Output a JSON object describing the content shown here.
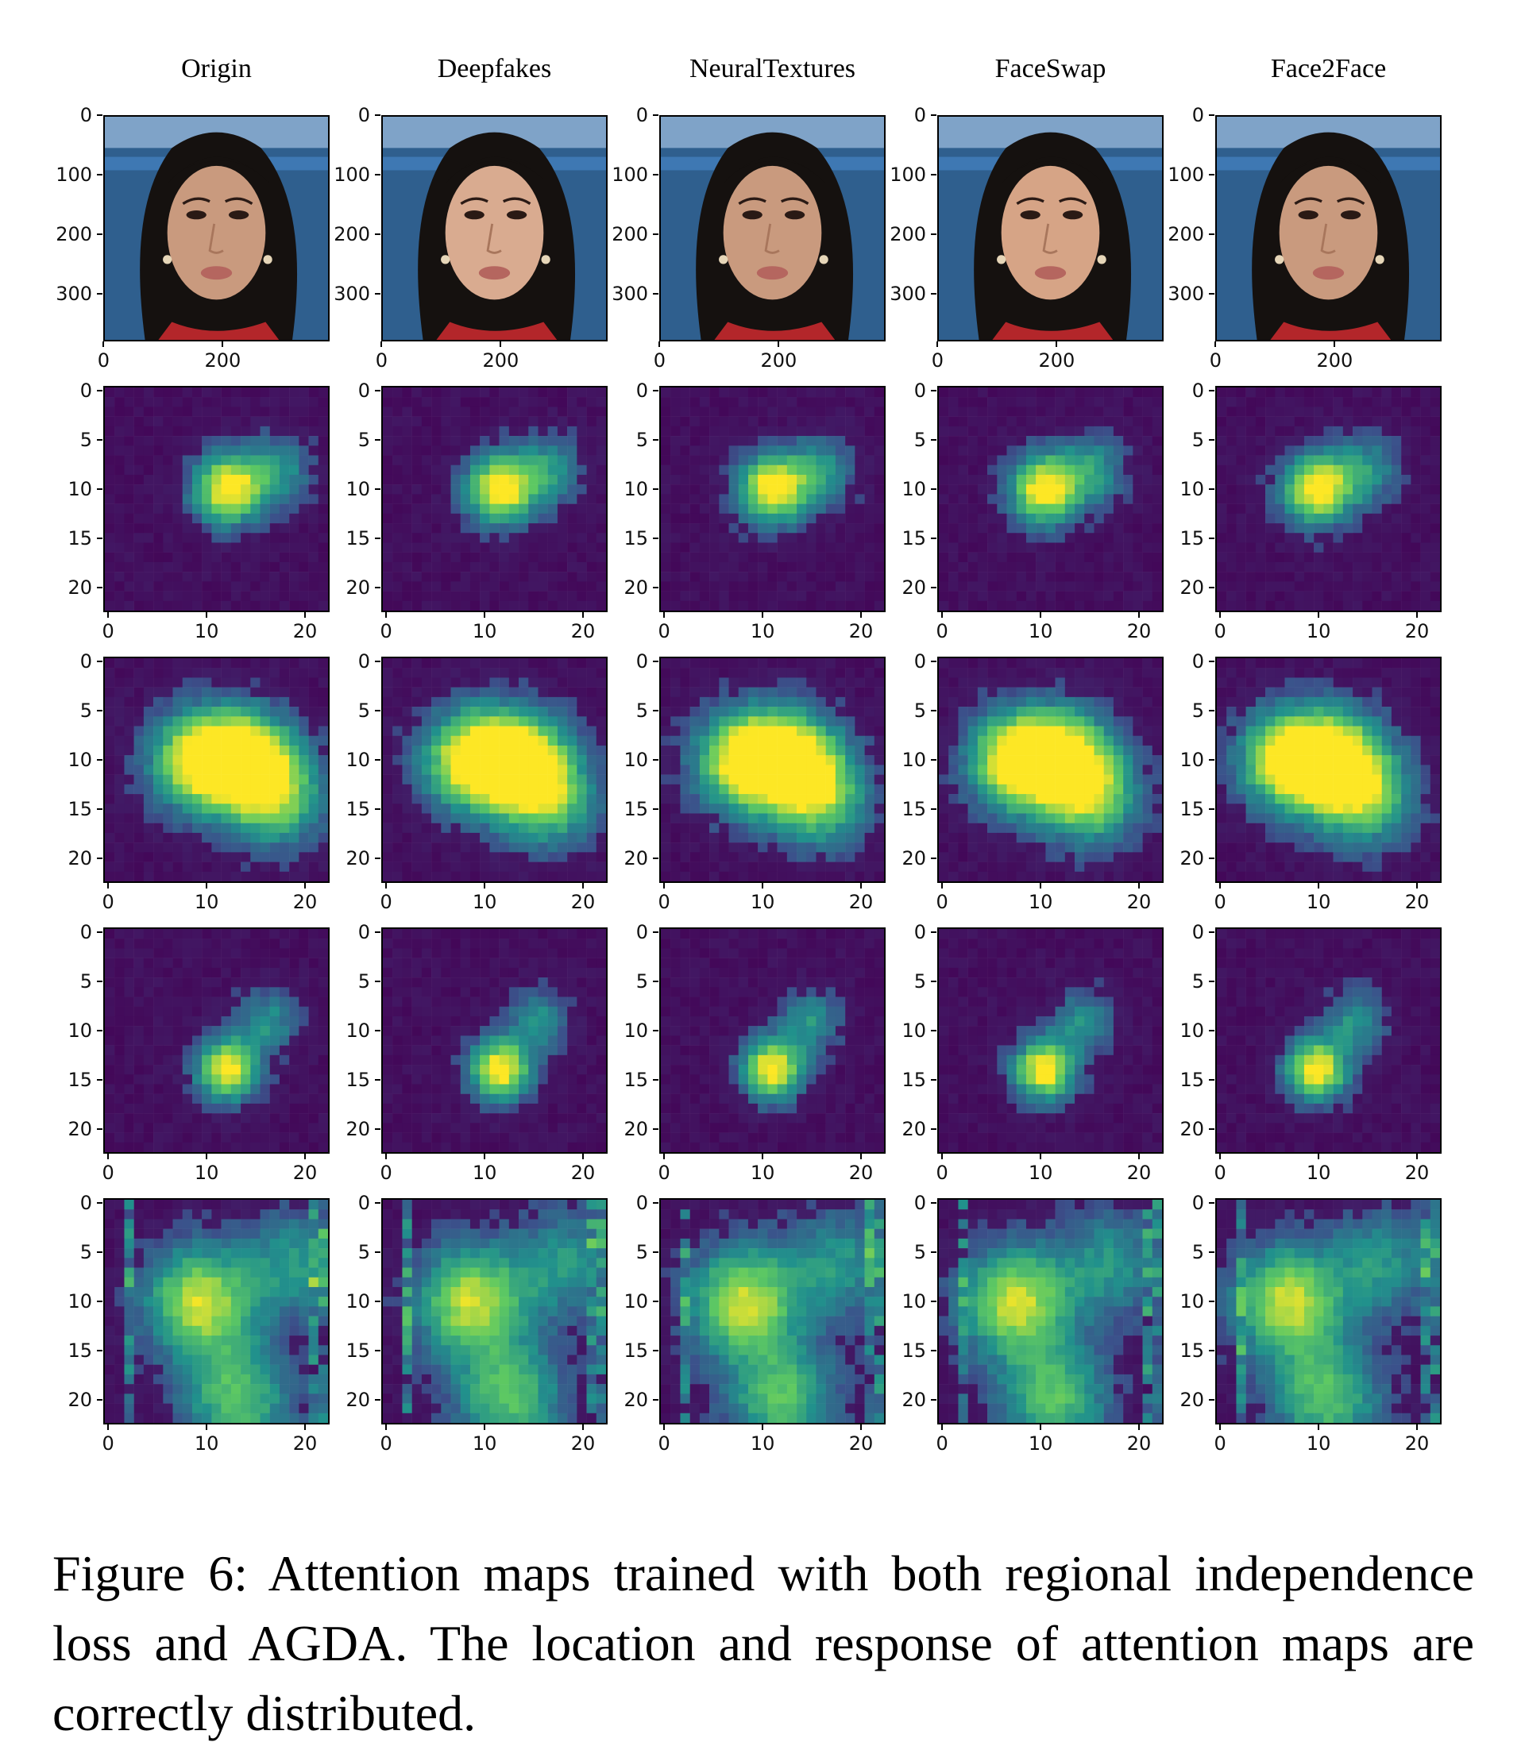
{
  "figure": {
    "columns": [
      "Origin",
      "Deepfakes",
      "NeuralTextures",
      "FaceSwap",
      "Face2Face"
    ],
    "image_row": {
      "y_ticks": [
        "0",
        "100",
        "200",
        "300"
      ],
      "x_ticks": [
        "0",
        "200"
      ],
      "content": "face photograph"
    },
    "attention_rows": {
      "count": 4,
      "y_ticks": [
        "0",
        "5",
        "10",
        "15",
        "20"
      ],
      "x_ticks": [
        "0",
        "10",
        "20"
      ],
      "grid_size": 23,
      "colormap": "viridis"
    },
    "colors": {
      "viridis_low": "#440154",
      "viridis_mid": "#21918c",
      "viridis_high": "#fde725"
    }
  },
  "caption": {
    "text": "Figure 6: Attention maps trained with both regional independence loss and AGDA. The location and response of attention maps are correctly distributed."
  }
}
